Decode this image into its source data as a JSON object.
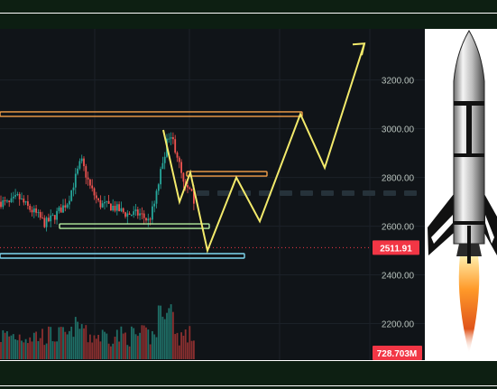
{
  "chart_data": {
    "type": "candlestick",
    "y_axis_ticks": [
      "3200.00",
      "3000.00",
      "2800.00",
      "2600.00",
      "2400.00",
      "2200.00"
    ],
    "y_axis_tick_values": [
      3200,
      3000,
      2800,
      2600,
      2400,
      2200
    ],
    "ylim": [
      2050,
      3410
    ],
    "current_price": {
      "label": "2511.91",
      "value": 2511.91,
      "color": "#f23645"
    },
    "volume_tag": {
      "label": "728.703M",
      "color": "#f23645"
    },
    "horizontal_levels": [
      {
        "name": "resistance-top",
        "value": 3060,
        "color": "#f5a04a"
      },
      {
        "name": "resistance-mid",
        "value": 2815,
        "color": "#f5a04a"
      },
      {
        "name": "support-green",
        "value": 2600,
        "color": "#b6f0a0"
      },
      {
        "name": "support-blue",
        "value": 2478,
        "color": "#7fd8f0"
      }
    ],
    "projection_path": [
      [
        2995,
        2995
      ],
      [
        2700,
        2700
      ],
      [
        2820,
        2820
      ],
      [
        2500,
        2500
      ],
      [
        2800,
        2800
      ],
      [
        2620,
        2620
      ],
      [
        3060,
        3060
      ],
      [
        2840,
        2840
      ],
      [
        3350,
        3350
      ]
    ],
    "colors": {
      "up": "#26a69a",
      "down": "#ef5350",
      "projection": "#f3ea6b"
    }
  },
  "illustration": {
    "rocket": "rocket-icon"
  }
}
